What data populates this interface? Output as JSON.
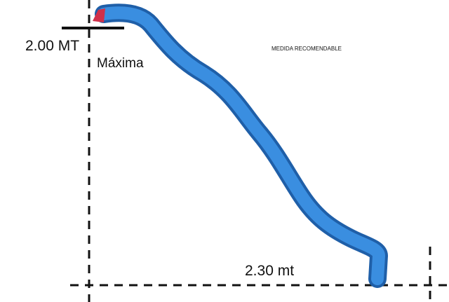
{
  "labels": {
    "height": "2.00 MT",
    "height_note": "Máxima",
    "recommendation": "MEDIDA RECOMENDABLE",
    "length": "2.30 mt"
  }
}
